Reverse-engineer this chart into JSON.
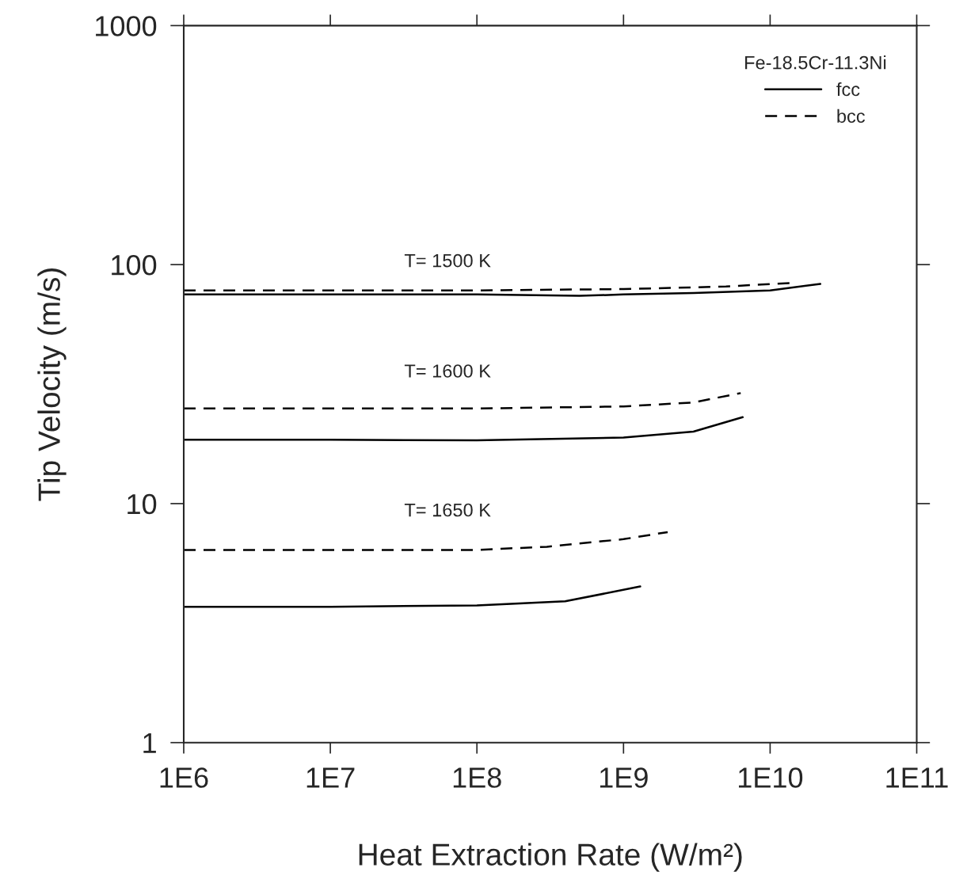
{
  "chart_data": {
    "type": "line",
    "xlabel": "Heat Extraction Rate (W/m²)",
    "ylabel": "Tip Velocity (m/s)",
    "legend_title": "Fe-18.5Cr-11.3Ni",
    "legend": "top right",
    "log": "xy",
    "grid": false,
    "marker": "none",
    "xlim": [
      1000000,
      100000000000
    ],
    "ylim": [
      1,
      1000
    ],
    "xticks": [
      {
        "value": 1000000,
        "label": "1E6"
      },
      {
        "value": 10000000,
        "label": "1E7"
      },
      {
        "value": 100000000,
        "label": "1E8"
      },
      {
        "value": 1000000000,
        "label": "1E9"
      },
      {
        "value": 10000000000,
        "label": "1E10"
      },
      {
        "value": 100000000000,
        "label": "1E11"
      }
    ],
    "yticks": [
      1,
      10,
      100,
      1000
    ],
    "series": [
      {
        "name": "fcc",
        "color": "#000000",
        "line_style": "solid",
        "x": [
          1000000,
          10000000,
          100000000,
          500000000,
          1000000000,
          3000000000,
          10000000000,
          22000000000
        ],
        "values": [
          75,
          75,
          75,
          74,
          75,
          76,
          78,
          83
        ]
      },
      {
        "name": "bcc",
        "color": "#000000",
        "line_style": "dashed",
        "x": [
          1000000,
          10000000,
          100000000,
          1000000000,
          5000000000,
          15000000000
        ],
        "values": [
          78,
          78,
          78,
          79,
          81,
          84
        ]
      },
      {
        "color": "#000000",
        "line_style": "dashed",
        "x": [
          1000000,
          10000000,
          100000000,
          1000000000,
          3000000000,
          6300000000
        ],
        "values": [
          25,
          25,
          25,
          25.5,
          26.5,
          29
        ]
      },
      {
        "color": "#000000",
        "line_style": "solid",
        "x": [
          1000000,
          10000000,
          100000000,
          1000000000,
          3000000000,
          6500000000
        ],
        "values": [
          18.5,
          18.5,
          18.4,
          18.9,
          20,
          23
        ]
      },
      {
        "color": "#000000",
        "line_style": "dashed",
        "x": [
          1000000,
          10000000,
          100000000,
          300000000,
          1000000000,
          2000000000
        ],
        "values": [
          6.4,
          6.4,
          6.4,
          6.6,
          7.1,
          7.6
        ]
      },
      {
        "color": "#000000",
        "line_style": "solid",
        "x": [
          1000000,
          10000000,
          100000000,
          400000000,
          1300000000
        ],
        "values": [
          3.7,
          3.7,
          3.75,
          3.9,
          4.5
        ]
      }
    ],
    "annotations": [
      "T= 1500 K",
      "T= 1600 K",
      "T= 1650 K"
    ]
  }
}
